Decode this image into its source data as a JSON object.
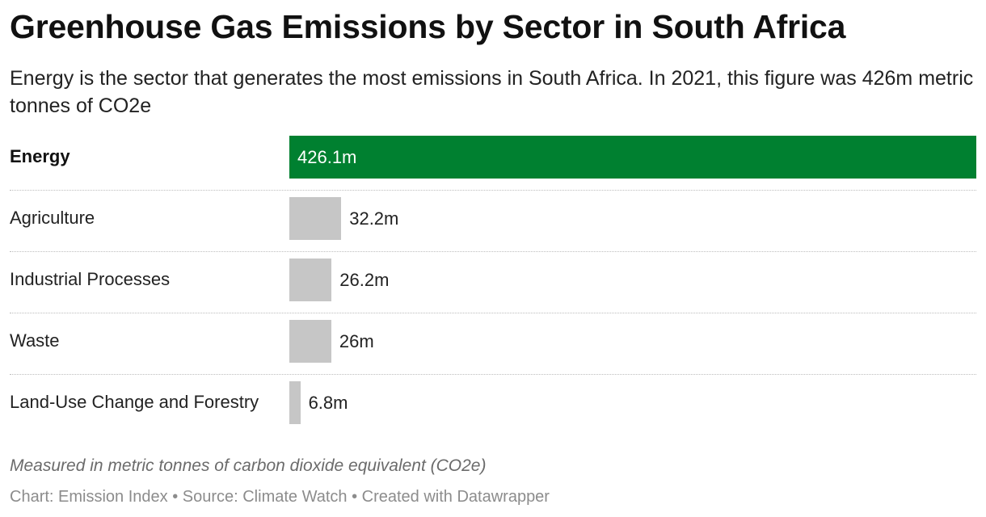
{
  "title": "Greenhouse Gas Emissions by Sector in South Africa",
  "subtitle": "Energy is the sector that generates the most emissions in South Africa. In 2021, this figure was 426m metric tonnes of CO2e",
  "notes": "Measured in metric tonnes of carbon dioxide equivalent (CO2e)",
  "credits": "Chart: Emission Index • Source: Climate Watch • Created with Datawrapper",
  "colors": {
    "highlight": "#008030",
    "default": "#c6c6c6"
  },
  "chart_data": {
    "type": "bar",
    "orientation": "horizontal",
    "title": "Greenhouse Gas Emissions by Sector in South Africa",
    "categories": [
      "Energy",
      "Agriculture",
      "Industrial Processes",
      "Waste",
      "Land-Use Change and Forestry"
    ],
    "values": [
      426.1,
      32.2,
      26.2,
      26,
      6.8
    ],
    "value_labels": [
      "426.1m",
      "32.2m",
      "26.2m",
      "26m",
      "6.8m"
    ],
    "highlighted": [
      "Energy"
    ],
    "xlim": [
      0,
      426.1
    ],
    "grid": false
  }
}
